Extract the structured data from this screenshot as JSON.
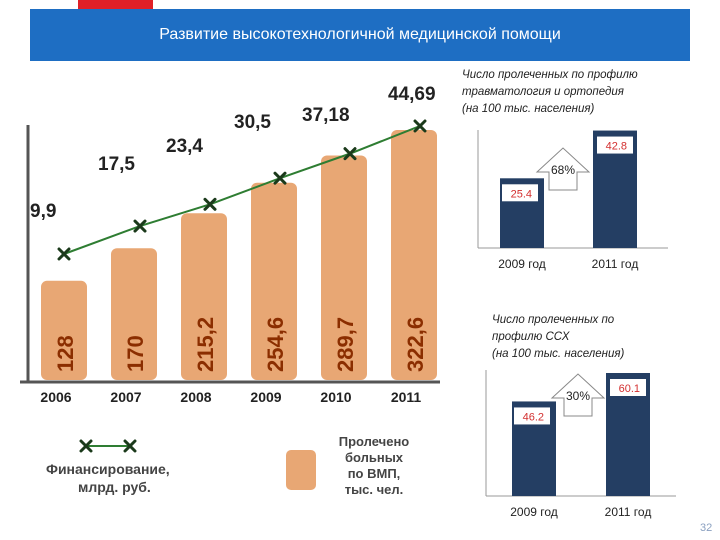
{
  "slide": {
    "title": "Развитие высокотехнологичной медицинской помощи",
    "page_number": "32"
  },
  "colors": {
    "title_bar": "#1e6ec3",
    "accent": "#e02027",
    "vmp_bar": "#e8a774",
    "funding_line": "#2e7d32",
    "funding_marker": "#1b3a1b",
    "small_bar": "#243e63",
    "value_text": "#d32f2f"
  },
  "chart_data": [
    {
      "type": "bar",
      "categories": [
        "2006",
        "2007",
        "2008",
        "2009",
        "2010",
        "2011"
      ],
      "series": [
        {
          "name": "Пролечено больных по ВМП, тыс. чел.",
          "values": [
            128,
            170,
            215.2,
            254.6,
            289.7,
            322.6
          ],
          "labels": [
            "128",
            "170",
            "215,2",
            "254,6",
            "289,7",
            "322,6"
          ]
        },
        {
          "name": "Финансирование, млрд. руб.",
          "type": "line",
          "values": [
            9.9,
            17.5,
            23.4,
            30.5,
            37.18,
            44.69
          ],
          "labels": [
            "9,9",
            "17,5",
            "23,4",
            "30,5",
            "37,18",
            "44,69"
          ]
        }
      ],
      "legend": {
        "line_label_lines": [
          "Финансирование,",
          "млрд. руб."
        ],
        "bar_label_lines": [
          "Пролечено",
          "больных",
          "по ВМП,",
          "тыс. чел."
        ]
      },
      "ylim_bars": [
        0,
        360
      ],
      "ylim_line": [
        0,
        50
      ]
    },
    {
      "type": "bar",
      "title_lines": [
        "Число пролеченных по профилю",
        "травматология и ортопедия",
        "(на 100 тыс. населения)"
      ],
      "categories": [
        "2009 год",
        "2011 год"
      ],
      "values": [
        25.4,
        42.8
      ],
      "value_labels": [
        "25.4",
        "42.8"
      ],
      "growth": "68%",
      "ylim": [
        0,
        45
      ]
    },
    {
      "type": "bar",
      "title_lines": [
        "Число пролеченных по",
        "профилю ССХ",
        "(на 100 тыс. населения)"
      ],
      "categories": [
        "2009 год",
        "2011 год"
      ],
      "values": [
        46.2,
        60.1
      ],
      "value_labels": [
        "46.2",
        "60.1"
      ],
      "growth": "30%",
      "ylim": [
        0,
        63
      ]
    }
  ]
}
